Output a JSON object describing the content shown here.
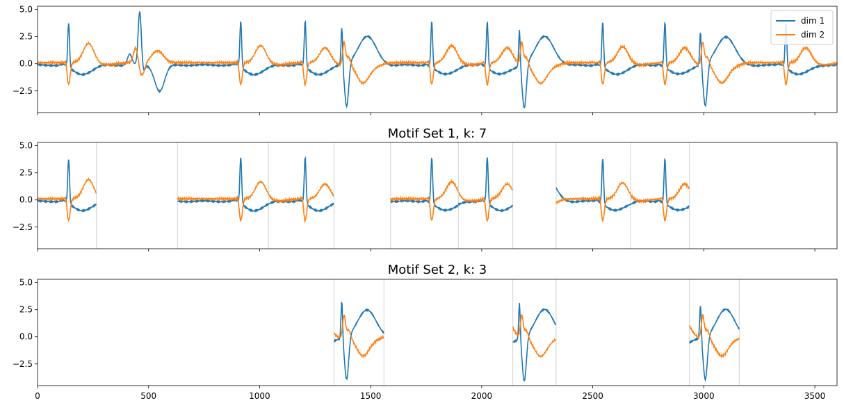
{
  "figure": {
    "panels": [
      {
        "title": "",
        "legend": true
      },
      {
        "title": "Motif Set 1, k: 7",
        "legend": false
      },
      {
        "title": "Motif Set 2, k: 3",
        "legend": false
      }
    ]
  },
  "chart_data": [
    {
      "type": "line",
      "title": "",
      "xlabel": "",
      "ylabel": "",
      "xlim": [
        0,
        3600
      ],
      "ylim": [
        -4.5,
        5.3
      ],
      "yticks": [
        -2.5,
        0.0,
        2.5,
        5.0
      ],
      "ytick_labels": [
        "−2.5",
        "0.0",
        "2.5",
        "5.0"
      ],
      "xticks": [
        0,
        500,
        1000,
        1500,
        2000,
        2500,
        3000,
        3500
      ],
      "legend_position": "top-right",
      "legend": [
        "dim 1",
        "dim 2"
      ],
      "colors": [
        "#1f77b4",
        "#ff7f0e"
      ],
      "beats": [
        {
          "x": 140,
          "d1_peak": 4.1,
          "d1_min": -0.2,
          "d2_peak": 1.8
        },
        {
          "x": 460,
          "d1_peak": 4.9,
          "d1_min": -2.4,
          "d2_peak": 1.1
        },
        {
          "x": 915,
          "d1_peak": 4.3,
          "d1_min": -0.2,
          "d2_peak": 1.6
        },
        {
          "x": 1205,
          "d1_peak": 4.3,
          "d1_min": -0.3,
          "d2_peak": 1.4
        },
        {
          "x": 1370,
          "d1_peak": 3.6,
          "d1_min": -4.0,
          "d2_peak": 2.6
        },
        {
          "x": 1775,
          "d1_peak": 4.3,
          "d1_min": -0.4,
          "d2_peak": 1.6
        },
        {
          "x": 2025,
          "d1_peak": 4.3,
          "d1_min": -0.4,
          "d2_peak": 1.4
        },
        {
          "x": 2170,
          "d1_peak": 3.5,
          "d1_min": -4.1,
          "d2_peak": 2.6
        },
        {
          "x": 2545,
          "d1_peak": 4.2,
          "d1_min": -0.3,
          "d2_peak": 1.5
        },
        {
          "x": 2825,
          "d1_peak": 4.2,
          "d1_min": -0.4,
          "d2_peak": 1.4
        },
        {
          "x": 2985,
          "d1_peak": 3.2,
          "d1_min": -4.0,
          "d2_peak": 2.5
        },
        {
          "x": 3370,
          "d1_peak": 4.2,
          "d1_min": -0.3,
          "d2_peak": 1.4
        }
      ],
      "vlines": []
    },
    {
      "type": "line",
      "title": "Motif Set 1, k: 7",
      "xlabel": "",
      "ylabel": "",
      "xlim": [
        0,
        3600
      ],
      "ylim": [
        -4.5,
        5.3
      ],
      "yticks": [
        -2.5,
        0.0,
        2.5,
        5.0
      ],
      "ytick_labels": [
        "−2.5",
        "0.0",
        "2.5",
        "5.0"
      ],
      "xticks": [
        0,
        500,
        1000,
        1500,
        2000,
        2500,
        3000,
        3500
      ],
      "colors": [
        "#1f77b4",
        "#ff7f0e"
      ],
      "segments": [
        [
          0,
          265
        ],
        [
          630,
          1040
        ],
        [
          1040,
          1335
        ],
        [
          1590,
          1895
        ],
        [
          1895,
          2140
        ],
        [
          2335,
          2670
        ],
        [
          2670,
          2935
        ]
      ],
      "vlines": [
        265,
        630,
        1040,
        1335,
        1590,
        1895,
        2140,
        2335,
        2670,
        2935
      ]
    },
    {
      "type": "line",
      "title": "Motif Set 2, k: 3",
      "xlabel": "",
      "ylabel": "",
      "xlim": [
        0,
        3600
      ],
      "ylim": [
        -4.5,
        5.3
      ],
      "yticks": [
        -2.5,
        0.0,
        2.5,
        5.0
      ],
      "ytick_labels": [
        "−2.5",
        "0.0",
        "2.5",
        "5.0"
      ],
      "xticks": [
        0,
        500,
        1000,
        1500,
        2000,
        2500,
        3000,
        3500
      ],
      "colors": [
        "#1f77b4",
        "#ff7f0e"
      ],
      "segments": [
        [
          1335,
          1560
        ],
        [
          2140,
          2335
        ],
        [
          2935,
          3160
        ]
      ],
      "vlines": [
        1335,
        1560,
        2140,
        2335,
        2935,
        3160
      ]
    }
  ]
}
